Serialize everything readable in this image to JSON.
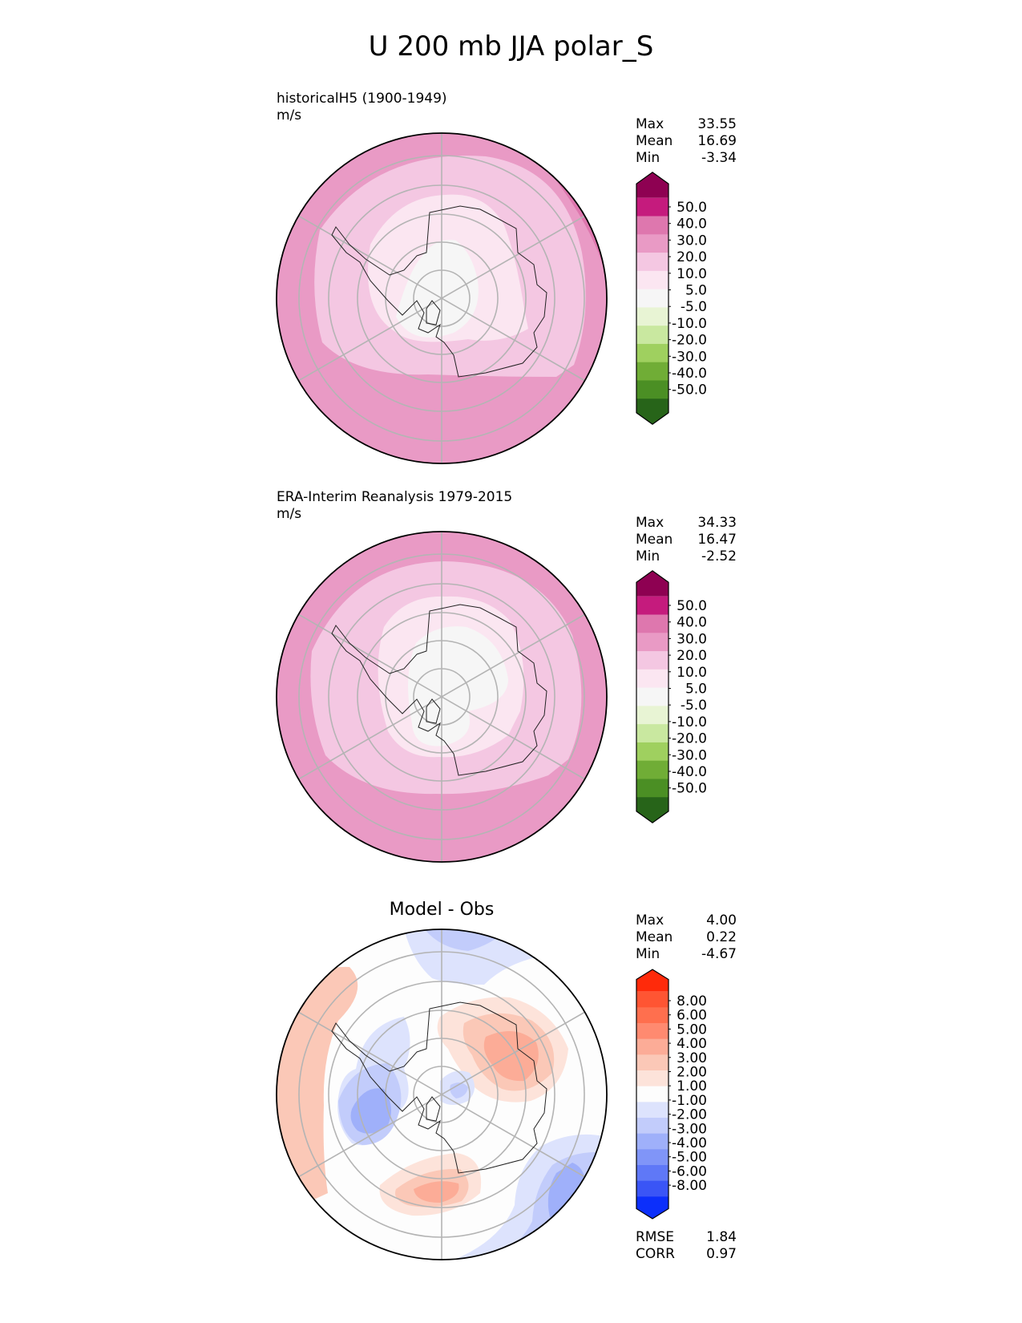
{
  "figure_title": "U 200 mb JJA polar_S",
  "panels": [
    {
      "label_line1": "historicalH5 (1900-1949)",
      "label_line2": "m/s",
      "stats": [
        {
          "key": "Max",
          "value": "33.55"
        },
        {
          "key": "Mean",
          "value": "16.69"
        },
        {
          "key": "Min",
          "value": "-3.34"
        }
      ],
      "colorbar": {
        "ticks": [
          "50.0",
          "40.0",
          "30.0",
          "20.0",
          "10.0",
          "5.0",
          "-5.0",
          "-10.0",
          "-20.0",
          "-30.0",
          "-40.0",
          "-50.0"
        ],
        "colors": [
          "#8e0152",
          "#c51b7d",
          "#de77ae",
          "#e99ac5",
          "#f4c7e2",
          "#fbe6f1",
          "#f6f6f6",
          "#e8f4d4",
          "#c9e8a0",
          "#9fd05f",
          "#70ad36",
          "#4b8f24",
          "#276419"
        ]
      }
    },
    {
      "label_line1": "ERA-Interim Reanalysis 1979-2015",
      "label_line2": "m/s",
      "stats": [
        {
          "key": "Max",
          "value": "34.33"
        },
        {
          "key": "Mean",
          "value": "16.47"
        },
        {
          "key": "Min",
          "value": "-2.52"
        }
      ],
      "colorbar": {
        "ticks": [
          "50.0",
          "40.0",
          "30.0",
          "20.0",
          "10.0",
          "5.0",
          "-5.0",
          "-10.0",
          "-20.0",
          "-30.0",
          "-40.0",
          "-50.0"
        ],
        "colors": [
          "#8e0152",
          "#c51b7d",
          "#de77ae",
          "#e99ac5",
          "#f4c7e2",
          "#fbe6f1",
          "#f6f6f6",
          "#e8f4d4",
          "#c9e8a0",
          "#9fd05f",
          "#70ad36",
          "#4b8f24",
          "#276419"
        ]
      }
    },
    {
      "title": "Model - Obs",
      "stats": [
        {
          "key": "Max",
          "value": "4.00"
        },
        {
          "key": "Mean",
          "value": "0.22"
        },
        {
          "key": "Min",
          "value": "-4.67"
        }
      ],
      "metrics": [
        {
          "key": "RMSE",
          "value": "1.84"
        },
        {
          "key": "CORR",
          "value": "0.97"
        }
      ],
      "colorbar": {
        "ticks": [
          "8.00",
          "6.00",
          "5.00",
          "4.00",
          "3.00",
          "2.00",
          "1.00",
          "-1.00",
          "-2.00",
          "-3.00",
          "-4.00",
          "-5.00",
          "-6.00",
          "-8.00"
        ],
        "colors": [
          "#ff2a0a",
          "#ff5533",
          "#ff6f4e",
          "#ff8a70",
          "#fcac97",
          "#fbc8b7",
          "#fde3da",
          "#fdfdfd",
          "#dde3fd",
          "#c2ccfb",
          "#9fb0fa",
          "#8095f8",
          "#5f78f7",
          "#3a55f6",
          "#0c2ffb"
        ]
      }
    }
  ],
  "chart_data": [
    {
      "type": "heatmap",
      "projection": "south polar stereographic",
      "title": "historicalH5 (1900-1949)",
      "units": "m/s",
      "stats": {
        "max": 33.55,
        "mean": 16.69,
        "min": -3.34
      },
      "levels": [
        -50,
        -40,
        -30,
        -20,
        -10,
        -5,
        5,
        10,
        20,
        30,
        40,
        50
      ]
    },
    {
      "type": "heatmap",
      "projection": "south polar stereographic",
      "title": "ERA-Interim Reanalysis 1979-2015",
      "units": "m/s",
      "stats": {
        "max": 34.33,
        "mean": 16.47,
        "min": -2.52
      },
      "levels": [
        -50,
        -40,
        -30,
        -20,
        -10,
        -5,
        5,
        10,
        20,
        30,
        40,
        50
      ]
    },
    {
      "type": "heatmap",
      "projection": "south polar stereographic",
      "title": "Model - Obs",
      "stats": {
        "max": 4.0,
        "mean": 0.22,
        "min": -4.67,
        "rmse": 1.84,
        "corr": 0.97
      },
      "levels": [
        -8,
        -6,
        -5,
        -4,
        -3,
        -2,
        -1,
        1,
        2,
        3,
        4,
        5,
        6,
        8
      ]
    }
  ]
}
